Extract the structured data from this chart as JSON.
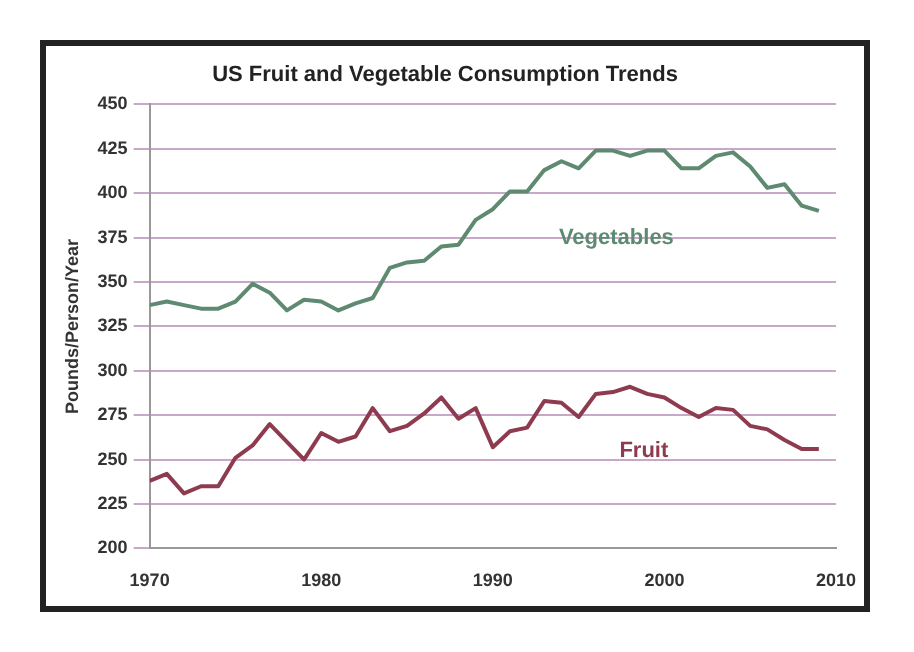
{
  "chart_data": {
    "type": "line",
    "title": "US Fruit and Vegetable Consumption Trends",
    "ylabel": "Pounds/Person/Year",
    "x": [
      1970,
      1971,
      1972,
      1973,
      1974,
      1975,
      1976,
      1977,
      1978,
      1979,
      1980,
      1981,
      1982,
      1983,
      1984,
      1985,
      1986,
      1987,
      1988,
      1989,
      1990,
      1991,
      1992,
      1993,
      1994,
      1995,
      1996,
      1997,
      1998,
      1999,
      2000,
      2001,
      2002,
      2003,
      2004,
      2005,
      2006,
      2007,
      2008,
      2009
    ],
    "series": [
      {
        "name": "Vegetables",
        "color": "#5f8a72",
        "values": [
          337,
          339,
          337,
          335,
          335,
          339,
          349,
          344,
          334,
          340,
          339,
          334,
          338,
          341,
          358,
          361,
          362,
          370,
          371,
          385,
          391,
          401,
          401,
          413,
          418,
          414,
          424,
          424,
          421,
          424,
          424,
          414,
          414,
          421,
          423,
          415,
          403,
          405,
          393,
          390
        ]
      },
      {
        "name": "Fruit",
        "color": "#8e3b4f",
        "values": [
          238,
          242,
          231,
          235,
          235,
          251,
          258,
          270,
          260,
          250,
          265,
          260,
          263,
          279,
          266,
          269,
          276,
          285,
          273,
          279,
          257,
          266,
          268,
          283,
          282,
          274,
          287,
          288,
          291,
          287,
          285,
          279,
          274,
          279,
          278,
          269,
          267,
          261,
          256,
          256
        ]
      }
    ],
    "xlim": [
      1970,
      2010
    ],
    "xticks": [
      1970,
      1980,
      1990,
      2000,
      2010
    ],
    "ylim": [
      200,
      450
    ],
    "yticks": [
      200,
      225,
      250,
      275,
      300,
      325,
      350,
      375,
      400,
      425,
      450
    ],
    "grid": "y",
    "legend": false,
    "marker": "none",
    "line_style": "solid"
  }
}
